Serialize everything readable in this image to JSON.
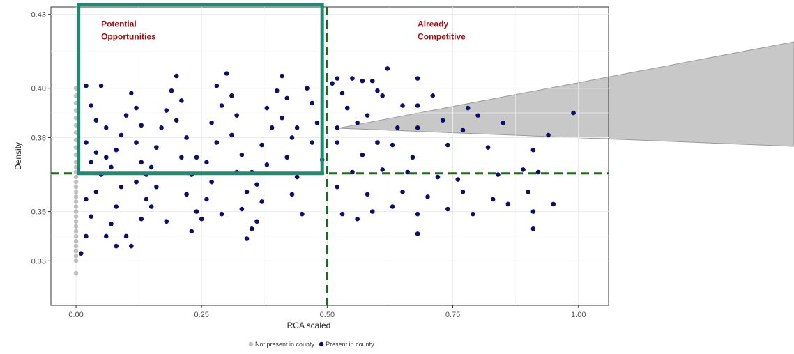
{
  "chart_data": {
    "type": "scatter",
    "xlabel": "RCA scaled",
    "ylabel": "Density",
    "xlim": [
      -0.05,
      1.06
    ],
    "ylim": [
      0.312,
      0.433
    ],
    "x_ticks": [
      {
        "value": 0.0,
        "label": "0.00"
      },
      {
        "value": 0.25,
        "label": "0.25"
      },
      {
        "value": 0.5,
        "label": "0.50"
      },
      {
        "value": 0.75,
        "label": "0.75"
      },
      {
        "value": 1.0,
        "label": "1.00"
      }
    ],
    "y_ticks": [
      {
        "value": 0.33,
        "label": "0.33"
      },
      {
        "value": 0.35,
        "label": "0.35"
      },
      {
        "value": 0.38,
        "label": "0.38"
      },
      {
        "value": 0.4,
        "label": "0.40"
      },
      {
        "value": 0.43,
        "label": "0.43"
      }
    ],
    "grid": true,
    "legend_position": "bottom",
    "reference_lines": {
      "x": 0.5,
      "y": 0.3655
    },
    "highlight_box": {
      "x0": 0.005,
      "x1": 0.49,
      "y0": 0.3655,
      "y1": 0.434
    },
    "annotations": [
      {
        "text_lines": [
          "Potential",
          "Opportunities"
        ],
        "x": 0.05,
        "y": 0.425
      },
      {
        "text_lines": [
          "Already",
          "Competitive"
        ],
        "x": 0.68,
        "y": 0.425
      }
    ],
    "colors": {
      "not_present": "#bfbfbf",
      "present": "#0d0d6b",
      "reference_line": "#1a6b1a",
      "highlight_box": "#1f8a70",
      "annotation_text": "#a50f15",
      "zoom_wedge": "#c8c8c8"
    },
    "series": [
      {
        "name": "Not present in county",
        "points": [
          [
            0,
            0.325
          ],
          [
            0,
            0.33
          ],
          [
            0,
            0.332
          ],
          [
            0,
            0.334
          ],
          [
            0,
            0.336
          ],
          [
            0,
            0.338
          ],
          [
            0,
            0.34
          ],
          [
            0,
            0.342
          ],
          [
            0,
            0.344
          ],
          [
            0,
            0.346
          ],
          [
            0,
            0.348
          ],
          [
            0,
            0.35
          ],
          [
            0,
            0.352
          ],
          [
            0,
            0.354
          ],
          [
            0,
            0.356
          ],
          [
            0,
            0.358
          ],
          [
            0,
            0.36
          ],
          [
            0,
            0.362
          ],
          [
            0,
            0.364
          ],
          [
            0,
            0.366
          ],
          [
            0,
            0.368
          ],
          [
            0,
            0.37
          ],
          [
            0,
            0.373
          ],
          [
            0,
            0.376
          ],
          [
            0,
            0.379
          ],
          [
            0,
            0.382
          ],
          [
            0,
            0.385
          ],
          [
            0,
            0.388
          ],
          [
            0,
            0.391
          ],
          [
            0,
            0.394
          ],
          [
            0,
            0.397
          ],
          [
            0,
            0.4
          ]
        ]
      },
      {
        "name": "Present in county",
        "points": [
          [
            0.02,
            0.401
          ],
          [
            0.05,
            0.401
          ],
          [
            0.03,
            0.393
          ],
          [
            0.04,
            0.387
          ],
          [
            0.06,
            0.384
          ],
          [
            0.02,
            0.378
          ],
          [
            0.04,
            0.374
          ],
          [
            0.03,
            0.37
          ],
          [
            0.05,
            0.365
          ],
          [
            0.04,
            0.358
          ],
          [
            0.02,
            0.355
          ],
          [
            0.03,
            0.348
          ],
          [
            0.02,
            0.34
          ],
          [
            0.01,
            0.333
          ],
          [
            0.06,
            0.34
          ],
          [
            0.07,
            0.345
          ],
          [
            0.08,
            0.352
          ],
          [
            0.09,
            0.36
          ],
          [
            0.07,
            0.368
          ],
          [
            0.08,
            0.375
          ],
          [
            0.09,
            0.381
          ],
          [
            0.1,
            0.389
          ],
          [
            0.11,
            0.398
          ],
          [
            0.12,
            0.392
          ],
          [
            0.13,
            0.385
          ],
          [
            0.12,
            0.378
          ],
          [
            0.13,
            0.37
          ],
          [
            0.12,
            0.362
          ],
          [
            0.14,
            0.355
          ],
          [
            0.13,
            0.347
          ],
          [
            0.15,
            0.352
          ],
          [
            0.16,
            0.36
          ],
          [
            0.15,
            0.368
          ],
          [
            0.16,
            0.376
          ],
          [
            0.17,
            0.384
          ],
          [
            0.18,
            0.391
          ],
          [
            0.19,
            0.399
          ],
          [
            0.2,
            0.405
          ],
          [
            0.21,
            0.395
          ],
          [
            0.2,
            0.387
          ],
          [
            0.22,
            0.38
          ],
          [
            0.21,
            0.372
          ],
          [
            0.23,
            0.365
          ],
          [
            0.22,
            0.357
          ],
          [
            0.24,
            0.35
          ],
          [
            0.23,
            0.342
          ],
          [
            0.25,
            0.347
          ],
          [
            0.26,
            0.355
          ],
          [
            0.27,
            0.362
          ],
          [
            0.26,
            0.37
          ],
          [
            0.28,
            0.378
          ],
          [
            0.27,
            0.386
          ],
          [
            0.29,
            0.393
          ],
          [
            0.28,
            0.401
          ],
          [
            0.3,
            0.406
          ],
          [
            0.31,
            0.397
          ],
          [
            0.32,
            0.389
          ],
          [
            0.31,
            0.381
          ],
          [
            0.33,
            0.373
          ],
          [
            0.32,
            0.366
          ],
          [
            0.34,
            0.358
          ],
          [
            0.33,
            0.351
          ],
          [
            0.35,
            0.343
          ],
          [
            0.34,
            0.339
          ],
          [
            0.36,
            0.346
          ],
          [
            0.37,
            0.354
          ],
          [
            0.36,
            0.361
          ],
          [
            0.38,
            0.369
          ],
          [
            0.37,
            0.377
          ],
          [
            0.39,
            0.384
          ],
          [
            0.38,
            0.392
          ],
          [
            0.4,
            0.399
          ],
          [
            0.41,
            0.405
          ],
          [
            0.42,
            0.396
          ],
          [
            0.41,
            0.388
          ],
          [
            0.43,
            0.38
          ],
          [
            0.42,
            0.372
          ],
          [
            0.44,
            0.364
          ],
          [
            0.43,
            0.357
          ],
          [
            0.45,
            0.349
          ],
          [
            0.46,
            0.4
          ],
          [
            0.47,
            0.394
          ],
          [
            0.48,
            0.386
          ],
          [
            0.47,
            0.378
          ],
          [
            0.49,
            0.371
          ],
          [
            0.1,
            0.34
          ],
          [
            0.11,
            0.336
          ],
          [
            0.08,
            0.336
          ],
          [
            0.18,
            0.346
          ],
          [
            0.29,
            0.349
          ],
          [
            0.14,
            0.365
          ],
          [
            0.24,
            0.372
          ],
          [
            0.35,
            0.366
          ],
          [
            0.44,
            0.384
          ],
          [
            0.06,
            0.372
          ],
          [
            0.51,
            0.402
          ],
          [
            0.52,
            0.404
          ],
          [
            0.53,
            0.398
          ],
          [
            0.55,
            0.404
          ],
          [
            0.57,
            0.403
          ],
          [
            0.59,
            0.403
          ],
          [
            0.62,
            0.408
          ],
          [
            0.6,
            0.399
          ],
          [
            0.54,
            0.392
          ],
          [
            0.56,
            0.386
          ],
          [
            0.58,
            0.389
          ],
          [
            0.61,
            0.397
          ],
          [
            0.65,
            0.393
          ],
          [
            0.68,
            0.393
          ],
          [
            0.68,
            0.404
          ],
          [
            0.71,
            0.397
          ],
          [
            0.73,
            0.387
          ],
          [
            0.78,
            0.392
          ],
          [
            0.8,
            0.389
          ],
          [
            0.52,
            0.384
          ],
          [
            0.6,
            0.378
          ],
          [
            0.64,
            0.384
          ],
          [
            0.68,
            0.384
          ],
          [
            0.77,
            0.383
          ],
          [
            0.85,
            0.386
          ],
          [
            0.94,
            0.381
          ],
          [
            0.99,
            0.39
          ],
          [
            0.52,
            0.378
          ],
          [
            0.57,
            0.373
          ],
          [
            0.63,
            0.377
          ],
          [
            0.67,
            0.372
          ],
          [
            0.74,
            0.377
          ],
          [
            0.82,
            0.376
          ],
          [
            0.91,
            0.375
          ],
          [
            0.55,
            0.366
          ],
          [
            0.61,
            0.367
          ],
          [
            0.66,
            0.366
          ],
          [
            0.72,
            0.364
          ],
          [
            0.76,
            0.363
          ],
          [
            0.84,
            0.365
          ],
          [
            0.89,
            0.367
          ],
          [
            0.92,
            0.366
          ],
          [
            0.52,
            0.36
          ],
          [
            0.58,
            0.357
          ],
          [
            0.65,
            0.358
          ],
          [
            0.7,
            0.356
          ],
          [
            0.77,
            0.358
          ],
          [
            0.83,
            0.355
          ],
          [
            0.9,
            0.358
          ],
          [
            0.95,
            0.353
          ],
          [
            0.53,
            0.349
          ],
          [
            0.59,
            0.35
          ],
          [
            0.63,
            0.352
          ],
          [
            0.68,
            0.349
          ],
          [
            0.74,
            0.351
          ],
          [
            0.79,
            0.349
          ],
          [
            0.86,
            0.353
          ],
          [
            0.91,
            0.35
          ],
          [
            0.56,
            0.347
          ],
          [
            0.68,
            0.341
          ],
          [
            0.91,
            0.343
          ]
        ]
      }
    ]
  }
}
